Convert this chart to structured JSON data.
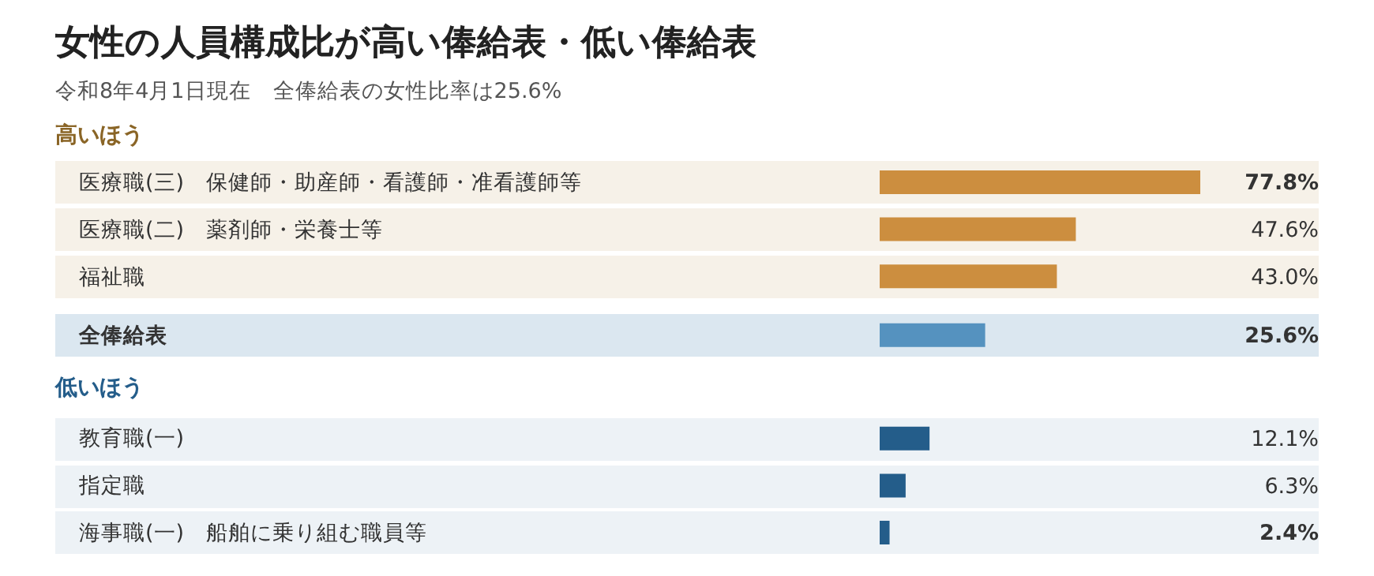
{
  "chart_data": {
    "type": "bar",
    "orientation": "horizontal",
    "title": "女性の人員構成比が高い俸給表・低い俸給表",
    "subtitle": "令和8年4月1日現在　全俸給表の女性比率は25.6%",
    "annotations": [
      "高いほう",
      "低いほう"
    ],
    "categories": [
      "医療職(三)　保健師・助産師・看護師・准看護師等",
      "医療職(二)　薬剤師・栄養士等",
      "福祉職",
      "全俸給表",
      "教育職(一)",
      "指定職",
      "海事職(一)　船舶に乗り組む職員等"
    ],
    "values": [
      77.8,
      47.6,
      43.0,
      25.6,
      12.1,
      6.3,
      2.4
    ],
    "colors": [
      "#cc8e3f",
      "#cc8e3f",
      "#cc8e3f",
      "#5592bf",
      "#245d8a",
      "#245d8a",
      "#245d8a"
    ],
    "value_labels": [
      "77.8%",
      "47.6%",
      "43.0%",
      "25.6%",
      "12.1%",
      "6.3%",
      "2.4%"
    ]
  }
}
